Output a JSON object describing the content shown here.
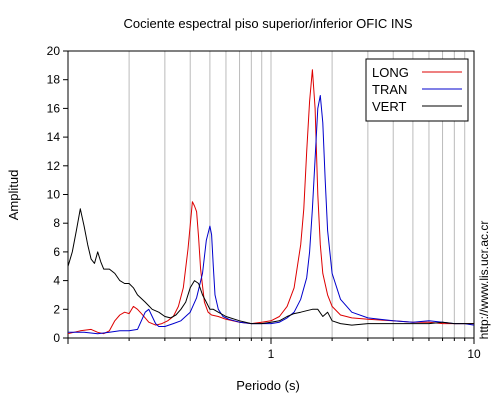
{
  "chart_data": {
    "type": "line",
    "title": "Cociente espectral piso superior/inferior  OFIC INS",
    "xlabel": "Periodo (s)",
    "ylabel": "Amplitud",
    "x_scale": "log",
    "xlim": [
      0.1,
      10
    ],
    "ylim": [
      0,
      20
    ],
    "x_ticks": [
      {
        "value": 1,
        "label": "1"
      },
      {
        "value": 10,
        "label": "10"
      }
    ],
    "y_ticks": [
      0,
      2,
      4,
      6,
      8,
      10,
      12,
      14,
      16,
      18,
      20
    ],
    "grid": "vertical log grid",
    "legend_position": "top-right",
    "watermark": "http://www.lis.ucr.ac.cr",
    "series": [
      {
        "name": "LONG",
        "color": "#dd0000",
        "x": [
          0.1,
          0.115,
          0.13,
          0.14,
          0.15,
          0.16,
          0.17,
          0.18,
          0.19,
          0.2,
          0.21,
          0.22,
          0.23,
          0.24,
          0.25,
          0.27,
          0.29,
          0.31,
          0.33,
          0.35,
          0.37,
          0.39,
          0.41,
          0.42,
          0.43,
          0.44,
          0.45,
          0.47,
          0.49,
          0.51,
          0.55,
          0.6,
          0.7,
          0.8,
          0.9,
          1.0,
          1.1,
          1.2,
          1.3,
          1.4,
          1.45,
          1.5,
          1.55,
          1.6,
          1.65,
          1.7,
          1.75,
          1.8,
          1.9,
          2.0,
          2.2,
          2.5,
          3.0,
          4.0,
          5.0,
          6.0,
          7.0,
          8.0,
          9.0,
          10.0
        ],
        "y": [
          0.3,
          0.5,
          0.6,
          0.4,
          0.3,
          0.5,
          1.2,
          1.6,
          1.8,
          1.7,
          2.2,
          2.0,
          1.7,
          1.4,
          1.1,
          0.9,
          1.0,
          1.2,
          1.5,
          2.2,
          3.5,
          6.2,
          9.5,
          9.2,
          8.8,
          7.0,
          4.8,
          2.5,
          1.8,
          1.6,
          1.5,
          1.3,
          1.1,
          1.0,
          1.1,
          1.2,
          1.5,
          2.2,
          3.5,
          6.5,
          9.0,
          13.0,
          16.5,
          18.7,
          16.0,
          10.0,
          6.5,
          4.5,
          3.0,
          2.2,
          1.6,
          1.4,
          1.3,
          1.2,
          1.1,
          1.1,
          1.0,
          1.0,
          1.0,
          1.0
        ]
      },
      {
        "name": "TRAN",
        "color": "#0000cc",
        "x": [
          0.1,
          0.12,
          0.14,
          0.16,
          0.18,
          0.2,
          0.22,
          0.24,
          0.25,
          0.26,
          0.27,
          0.28,
          0.3,
          0.33,
          0.36,
          0.4,
          0.43,
          0.46,
          0.48,
          0.5,
          0.51,
          0.52,
          0.53,
          0.55,
          0.58,
          0.62,
          0.7,
          0.8,
          0.9,
          1.0,
          1.1,
          1.2,
          1.3,
          1.4,
          1.5,
          1.55,
          1.6,
          1.65,
          1.7,
          1.75,
          1.8,
          1.85,
          1.9,
          2.0,
          2.2,
          2.5,
          3.0,
          4.0,
          5.0,
          6.0,
          7.0,
          8.0,
          9.0,
          10.0
        ],
        "y": [
          0.4,
          0.4,
          0.3,
          0.4,
          0.5,
          0.5,
          0.6,
          1.8,
          2.0,
          1.5,
          1.0,
          0.8,
          0.8,
          1.0,
          1.2,
          1.8,
          2.8,
          4.5,
          6.8,
          7.8,
          7.2,
          5.0,
          3.0,
          2.0,
          1.5,
          1.3,
          1.1,
          1.0,
          1.0,
          1.0,
          1.1,
          1.4,
          1.8,
          2.7,
          4.2,
          6.0,
          9.0,
          12.5,
          16.0,
          16.9,
          15.0,
          11.0,
          7.5,
          4.5,
          2.7,
          1.8,
          1.4,
          1.2,
          1.1,
          1.2,
          1.1,
          1.0,
          1.0,
          0.9
        ]
      },
      {
        "name": "VERT",
        "color": "#000000",
        "x": [
          0.1,
          0.105,
          0.11,
          0.115,
          0.12,
          0.125,
          0.13,
          0.135,
          0.14,
          0.145,
          0.15,
          0.16,
          0.17,
          0.18,
          0.19,
          0.2,
          0.21,
          0.22,
          0.24,
          0.26,
          0.28,
          0.3,
          0.32,
          0.34,
          0.36,
          0.38,
          0.4,
          0.42,
          0.44,
          0.46,
          0.48,
          0.5,
          0.52,
          0.55,
          0.6,
          0.7,
          0.8,
          0.9,
          1.0,
          1.1,
          1.2,
          1.3,
          1.4,
          1.5,
          1.6,
          1.7,
          1.8,
          1.9,
          2.0,
          2.2,
          2.5,
          3.0,
          4.0,
          5.0,
          6.0,
          7.0,
          8.0,
          9.0,
          10.0
        ],
        "y": [
          5.0,
          6.0,
          7.5,
          9.0,
          7.8,
          6.5,
          5.5,
          5.2,
          6.0,
          5.3,
          4.8,
          4.8,
          4.5,
          4.0,
          3.8,
          3.8,
          3.5,
          3.0,
          2.5,
          2.0,
          1.8,
          1.5,
          1.4,
          1.6,
          2.0,
          2.5,
          3.5,
          4.0,
          3.8,
          3.0,
          2.5,
          2.0,
          2.0,
          1.8,
          1.5,
          1.2,
          1.0,
          1.0,
          1.1,
          1.2,
          1.5,
          1.7,
          1.8,
          1.9,
          2.0,
          2.0,
          1.5,
          1.8,
          1.2,
          1.0,
          0.9,
          1.0,
          1.0,
          1.0,
          1.0,
          1.1,
          1.0,
          1.0,
          1.0
        ]
      }
    ]
  }
}
